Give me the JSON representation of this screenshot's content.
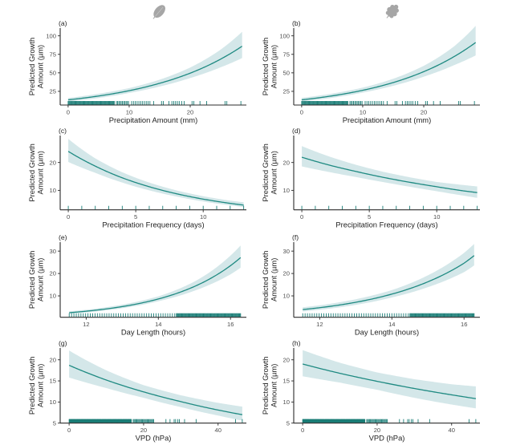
{
  "figure": {
    "column_icons": [
      "leaf-icon",
      "oak-leaf-icon"
    ],
    "colors": {
      "fit_line": "#1f8a82",
      "ci_band": "#d4e7e9",
      "rug": "#1a7d76",
      "icon": "#a6a6a6"
    }
  },
  "chart_data": [
    {
      "panel_label": "(a)",
      "type": "line",
      "xlabel": "Precipitation Amount (mm)",
      "ylabel": [
        "Predicted Growth",
        "Amount (µm)"
      ],
      "xlim": [
        -1.3,
        29.2
      ],
      "ylim": [
        6.5,
        110.5
      ],
      "xticks": [
        0,
        10,
        20
      ],
      "yticks": [
        25,
        50,
        75,
        100
      ],
      "grid": false,
      "x": [
        0,
        5,
        10,
        15,
        20,
        25,
        28.5
      ],
      "series": [
        {
          "name": "fit",
          "values": [
            13.5,
            18.7,
            25.9,
            35.9,
            49.6,
            68.6,
            86.0
          ]
        },
        {
          "name": "ci_lower",
          "values": [
            11.2,
            16.0,
            22.8,
            31.5,
            43.0,
            57.5,
            70.0
          ]
        },
        {
          "name": "ci_upper",
          "values": [
            16.0,
            21.8,
            29.4,
            40.8,
            57.2,
            81.5,
            105.5
          ]
        }
      ],
      "rug": {
        "dense": [
          [
            0,
            7.6,
            0.12
          ],
          [
            7.9,
            10.0,
            0.2
          ],
          [
            10.4,
            13.6,
            0.3
          ]
        ],
        "values": [
          14.0,
          15.3,
          15.6,
          16.5,
          17.0,
          17.3,
          17.6,
          17.9,
          18.2,
          18.6,
          19.0,
          20.3,
          20.6,
          21.6,
          22.7,
          25.7,
          26.0,
          28.3
        ]
      }
    },
    {
      "panel_label": "(b)",
      "type": "line",
      "xlabel": "Precipitation Amount (mm)",
      "ylabel": [
        "Predicted Growth",
        "Amount (µm)"
      ],
      "xlim": [
        -1.3,
        29.2
      ],
      "ylim": [
        6.5,
        110.5
      ],
      "xticks": [
        0,
        10,
        20
      ],
      "yticks": [
        25,
        50,
        75,
        100
      ],
      "grid": false,
      "x": [
        0,
        5,
        10,
        15,
        20,
        25,
        28.5
      ],
      "series": [
        {
          "name": "fit",
          "values": [
            13.5,
            18.9,
            26.4,
            36.9,
            51.6,
            72.1,
            91.0
          ]
        },
        {
          "name": "ci_lower",
          "values": [
            11.3,
            16.2,
            23.3,
            32.5,
            44.8,
            60.5,
            73.5
          ]
        },
        {
          "name": "ci_upper",
          "values": [
            16.2,
            22.0,
            30.0,
            42.0,
            59.5,
            86.0,
            113.5
          ]
        }
      ],
      "rug": {
        "dense": [
          [
            0,
            7.6,
            0.12
          ],
          [
            7.9,
            10.0,
            0.2
          ],
          [
            10.4,
            13.6,
            0.3
          ]
        ],
        "values": [
          14.0,
          15.3,
          15.6,
          16.5,
          17.0,
          17.3,
          17.6,
          17.9,
          18.2,
          18.6,
          19.0,
          20.3,
          20.6,
          21.6,
          22.7,
          25.7,
          26.0,
          28.3
        ]
      }
    },
    {
      "panel_label": "(c)",
      "type": "line",
      "xlabel": "Precipitation Frequency (days)",
      "ylabel": [
        "Predicted Growth",
        "Amount (µm)"
      ],
      "xlim": [
        -0.6,
        13.2
      ],
      "ylim": [
        3,
        29.7
      ],
      "xticks": [
        0,
        5,
        10
      ],
      "yticks": [
        10,
        20
      ],
      "grid": false,
      "x": [
        0,
        2,
        4,
        6,
        8,
        10,
        12,
        13
      ],
      "series": [
        {
          "name": "fit",
          "values": [
            24.0,
            18.7,
            14.5,
            11.3,
            8.8,
            6.85,
            5.33,
            4.7
          ]
        },
        {
          "name": "ci_lower",
          "values": [
            20.2,
            16.3,
            12.8,
            10.0,
            7.8,
            6.0,
            4.6,
            4.0
          ]
        },
        {
          "name": "ci_upper",
          "values": [
            28.5,
            21.5,
            16.5,
            12.8,
            10.0,
            7.9,
            6.3,
            5.7
          ]
        }
      ],
      "rug": {
        "dense": [],
        "values": [
          0,
          1,
          2,
          3,
          4,
          5,
          6,
          7,
          8,
          9,
          10,
          11,
          12,
          13
        ]
      }
    },
    {
      "panel_label": "(d)",
      "type": "line",
      "xlabel": "Precipitation Frequency (days)",
      "ylabel": [
        "Predicted Growth",
        "Amount (µm)"
      ],
      "xlim": [
        -0.6,
        13.2
      ],
      "ylim": [
        3,
        29.7
      ],
      "xticks": [
        0,
        5,
        10
      ],
      "yticks": [
        10,
        20
      ],
      "grid": false,
      "x": [
        0,
        2,
        4,
        6,
        8,
        10,
        12,
        13
      ],
      "series": [
        {
          "name": "fit",
          "values": [
            21.9,
            19.1,
            16.8,
            14.7,
            12.9,
            11.3,
            9.8,
            9.2
          ]
        },
        {
          "name": "ci_lower",
          "values": [
            18.6,
            16.6,
            14.8,
            13.0,
            11.3,
            9.7,
            8.1,
            7.3
          ]
        },
        {
          "name": "ci_upper",
          "values": [
            25.9,
            22.2,
            19.2,
            16.7,
            14.7,
            13.0,
            11.9,
            11.4
          ]
        }
      ],
      "rug": {
        "dense": [],
        "values": [
          0,
          1,
          2,
          3,
          4,
          5,
          6,
          7,
          8,
          9,
          10,
          11,
          12,
          13
        ]
      }
    },
    {
      "panel_label": "(e)",
      "type": "line",
      "xlabel": "Day Length (hours)",
      "ylabel": [
        "Predicted Growth",
        "Amount (µm)"
      ],
      "xlim": [
        11.28,
        16.44
      ],
      "ylim": [
        0.45,
        34
      ],
      "xticks": [
        12,
        14,
        16
      ],
      "yticks": [
        10,
        20,
        30
      ],
      "grid": false,
      "x": [
        11.53,
        12,
        13,
        14,
        15,
        16,
        16.28
      ],
      "series": [
        {
          "name": "fit",
          "values": [
            2.5,
            3.16,
            5.22,
            8.62,
            14.2,
            23.5,
            27.1
          ]
        },
        {
          "name": "ci_lower",
          "values": [
            2.0,
            2.6,
            4.5,
            7.6,
            12.3,
            19.6,
            22.6
          ]
        },
        {
          "name": "ci_upper",
          "values": [
            3.1,
            3.8,
            6.1,
            9.8,
            16.4,
            28.0,
            32.5
          ]
        }
      ],
      "rug": {
        "dense": [
          [
            11.53,
            14.5,
            0.065
          ],
          [
            14.5,
            16.28,
            0.02
          ]
        ],
        "values": []
      }
    },
    {
      "panel_label": "(f)",
      "type": "line",
      "xlabel": "Day Length (hours)",
      "ylabel": [
        "Predicted Growth",
        "Amount (µm)"
      ],
      "xlim": [
        11.28,
        16.44
      ],
      "ylim": [
        0.45,
        34
      ],
      "xticks": [
        12,
        14,
        16
      ],
      "yticks": [
        10,
        20,
        30
      ],
      "grid": false,
      "x": [
        11.53,
        12,
        13,
        14,
        15,
        16,
        16.28
      ],
      "series": [
        {
          "name": "fit",
          "values": [
            3.9,
            4.73,
            7.15,
            10.8,
            16.3,
            24.6,
            28.0
          ]
        },
        {
          "name": "ci_lower",
          "values": [
            3.0,
            3.8,
            6.0,
            9.3,
            13.9,
            20.6,
            23.6
          ]
        },
        {
          "name": "ci_upper",
          "values": [
            4.9,
            5.8,
            8.5,
            12.6,
            19.2,
            29.2,
            33.2
          ]
        }
      ],
      "rug": {
        "dense": [
          [
            11.53,
            14.5,
            0.065
          ],
          [
            14.5,
            16.28,
            0.02
          ]
        ],
        "values": []
      }
    },
    {
      "panel_label": "(g)",
      "type": "line",
      "xlabel": "VPD (hPa)",
      "ylabel": [
        "Predicted Growth",
        "Amount (µm)"
      ],
      "xlim": [
        -2.4,
        47.6
      ],
      "ylim": [
        5,
        22.8
      ],
      "xticks": [
        0,
        20,
        40
      ],
      "yticks": [
        5,
        10,
        15,
        20
      ],
      "grid": false,
      "x": [
        0,
        10,
        20,
        30,
        40,
        46.5
      ],
      "series": [
        {
          "name": "fit",
          "values": [
            18.7,
            15.2,
            12.4,
            10.1,
            8.1,
            7.0
          ]
        },
        {
          "name": "ci_lower",
          "values": [
            15.8,
            13.3,
            11.0,
            8.8,
            6.8,
            5.6
          ]
        },
        {
          "name": "ci_upper",
          "values": [
            22.2,
            17.5,
            14.0,
            11.6,
            9.8,
            8.9
          ]
        }
      ],
      "rug": {
        "dense": [
          [
            0,
            16.7,
            0.1
          ],
          [
            17.2,
            22.8,
            0.25
          ]
        ],
        "values": [
          26.0,
          27.1,
          28.2,
          28.6,
          29.2,
          29.6,
          31.0,
          34.1,
          44.7,
          46.5
        ]
      }
    },
    {
      "panel_label": "(h)",
      "type": "line",
      "xlabel": "VPD (hPa)",
      "ylabel": [
        "Predicted Growth",
        "Amount (µm)"
      ],
      "xlim": [
        -2.4,
        47.6
      ],
      "ylim": [
        5,
        22.8
      ],
      "xticks": [
        0,
        20,
        40
      ],
      "yticks": [
        5,
        10,
        15,
        20
      ],
      "grid": false,
      "x": [
        0,
        10,
        20,
        30,
        40,
        46.5
      ],
      "series": [
        {
          "name": "fit",
          "values": [
            19.0,
            16.8,
            14.9,
            13.2,
            11.7,
            10.8
          ]
        },
        {
          "name": "ci_lower",
          "values": [
            16.1,
            14.6,
            12.9,
            11.0,
            9.4,
            8.5
          ]
        },
        {
          "name": "ci_upper",
          "values": [
            22.3,
            19.3,
            17.0,
            15.4,
            14.2,
            13.7
          ]
        }
      ],
      "rug": {
        "dense": [
          [
            0,
            16.7,
            0.1
          ],
          [
            17.2,
            22.8,
            0.25
          ]
        ],
        "values": [
          26.0,
          27.1,
          28.2,
          28.6,
          29.2,
          29.6,
          31.0,
          34.1,
          44.7,
          46.5
        ]
      }
    }
  ]
}
